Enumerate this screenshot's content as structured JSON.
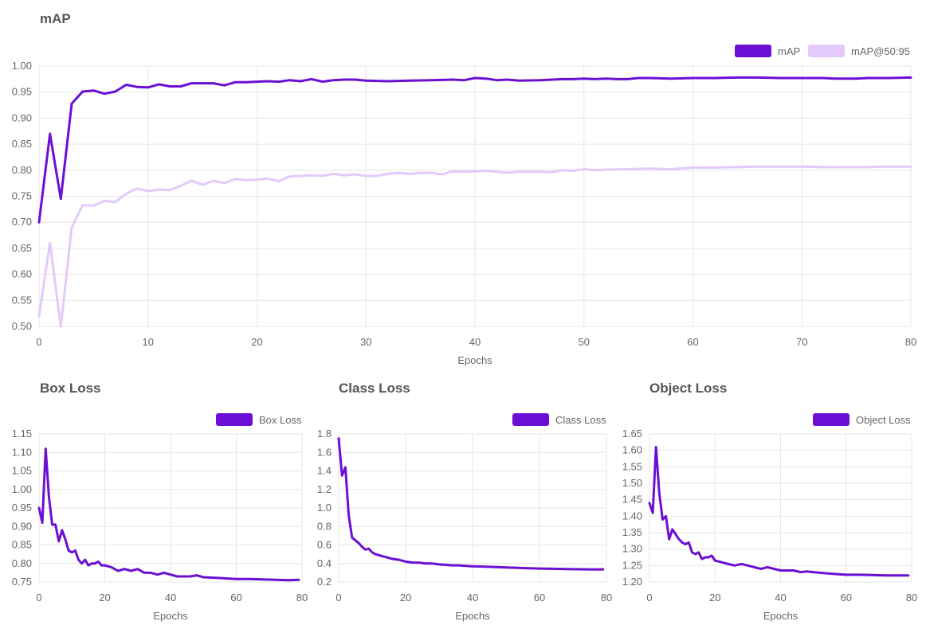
{
  "colors": {
    "primary": "#6b0fd4",
    "secondary": "#e3c9fc",
    "grid": "#e6e6e6",
    "text": "#666666",
    "title": "#555555"
  },
  "sections": {
    "map": "mAP",
    "box": "Box Loss",
    "class": "Class Loss",
    "object": "Object Loss"
  },
  "chart_data": [
    {
      "type": "line",
      "title": "mAP",
      "xlabel": "Epochs",
      "ylabel": "",
      "xlim": [
        0,
        80
      ],
      "ylim": [
        0.5,
        1.0
      ],
      "xticks": [
        0,
        10,
        20,
        30,
        40,
        50,
        60,
        70,
        80
      ],
      "yticks": [
        "0.50",
        "0.55",
        "0.60",
        "0.65",
        "0.70",
        "0.75",
        "0.80",
        "0.85",
        "0.90",
        "0.95",
        "1.00"
      ],
      "grid": true,
      "legend": "top-right",
      "series": [
        {
          "name": "mAP",
          "color": "#6b0fd4",
          "x": [
            0,
            1,
            2,
            3,
            4,
            5,
            6,
            7,
            8,
            9,
            10,
            11,
            12,
            13,
            14,
            15,
            16,
            17,
            18,
            19,
            20,
            21,
            22,
            23,
            24,
            25,
            26,
            27,
            28,
            29,
            30,
            32,
            34,
            36,
            38,
            39,
            40,
            41,
            42,
            43,
            44,
            46,
            48,
            49,
            50,
            51,
            52,
            53,
            54,
            55,
            56,
            58,
            60,
            62,
            64,
            65,
            66,
            68,
            70,
            72,
            73,
            74,
            75,
            76,
            78,
            80
          ],
          "y": [
            0.7,
            0.87,
            0.745,
            0.928,
            0.951,
            0.953,
            0.947,
            0.951,
            0.964,
            0.96,
            0.959,
            0.965,
            0.961,
            0.961,
            0.967,
            0.967,
            0.967,
            0.963,
            0.969,
            0.969,
            0.97,
            0.971,
            0.97,
            0.973,
            0.971,
            0.975,
            0.97,
            0.973,
            0.974,
            0.974,
            0.972,
            0.971,
            0.972,
            0.973,
            0.974,
            0.973,
            0.977,
            0.976,
            0.973,
            0.974,
            0.972,
            0.973,
            0.975,
            0.975,
            0.976,
            0.975,
            0.976,
            0.975,
            0.975,
            0.977,
            0.977,
            0.976,
            0.977,
            0.977,
            0.978,
            0.978,
            0.978,
            0.977,
            0.977,
            0.977,
            0.976,
            0.976,
            0.976,
            0.977,
            0.977,
            0.978
          ]
        },
        {
          "name": "mAP@50:95",
          "color": "#e3c9fc",
          "x": [
            0,
            1,
            2,
            3,
            4,
            5,
            6,
            7,
            8,
            9,
            10,
            11,
            12,
            13,
            14,
            15,
            16,
            17,
            18,
            19,
            20,
            21,
            22,
            23,
            24,
            25,
            26,
            27,
            28,
            29,
            30,
            31,
            32,
            33,
            34,
            35,
            36,
            37,
            38,
            39,
            40,
            41,
            42,
            43,
            44,
            45,
            46,
            47,
            48,
            49,
            50,
            51,
            52,
            54,
            56,
            58,
            60,
            62,
            64,
            66,
            68,
            70,
            72,
            74,
            76,
            78,
            80
          ],
          "y": [
            0.52,
            0.66,
            0.5,
            0.69,
            0.733,
            0.732,
            0.741,
            0.739,
            0.755,
            0.765,
            0.76,
            0.763,
            0.762,
            0.77,
            0.78,
            0.772,
            0.78,
            0.775,
            0.783,
            0.781,
            0.782,
            0.784,
            0.779,
            0.788,
            0.789,
            0.79,
            0.789,
            0.793,
            0.79,
            0.792,
            0.789,
            0.789,
            0.793,
            0.795,
            0.793,
            0.795,
            0.795,
            0.792,
            0.798,
            0.797,
            0.798,
            0.799,
            0.797,
            0.795,
            0.797,
            0.797,
            0.797,
            0.796,
            0.8,
            0.799,
            0.802,
            0.8,
            0.801,
            0.802,
            0.803,
            0.802,
            0.805,
            0.805,
            0.806,
            0.807,
            0.807,
            0.807,
            0.806,
            0.806,
            0.806,
            0.807,
            0.807
          ]
        }
      ]
    },
    {
      "type": "line",
      "title": "Box Loss",
      "xlabel": "Epochs",
      "ylabel": "",
      "xlim": [
        0,
        80
      ],
      "ylim": [
        0.75,
        1.15
      ],
      "xticks": [
        0,
        20,
        40,
        60,
        80
      ],
      "yticks": [
        "0.75",
        "0.80",
        "0.85",
        "0.90",
        "0.95",
        "1.00",
        "1.05",
        "1.10",
        "1.15"
      ],
      "grid": true,
      "legend": "top-right",
      "series": [
        {
          "name": "Box Loss",
          "color": "#6b0fd4",
          "x": [
            0,
            1,
            2,
            3,
            4,
            5,
            6,
            7,
            8,
            9,
            10,
            11,
            12,
            13,
            14,
            15,
            16,
            17,
            18,
            19,
            20,
            22,
            24,
            26,
            28,
            30,
            32,
            34,
            36,
            38,
            40,
            42,
            44,
            46,
            48,
            50,
            52,
            56,
            60,
            64,
            68,
            72,
            76,
            79
          ],
          "y": [
            0.95,
            0.91,
            1.11,
            0.98,
            0.905,
            0.905,
            0.86,
            0.89,
            0.865,
            0.835,
            0.83,
            0.835,
            0.81,
            0.8,
            0.81,
            0.795,
            0.8,
            0.8,
            0.805,
            0.795,
            0.795,
            0.79,
            0.78,
            0.785,
            0.78,
            0.785,
            0.775,
            0.775,
            0.77,
            0.775,
            0.77,
            0.765,
            0.765,
            0.765,
            0.768,
            0.763,
            0.762,
            0.76,
            0.758,
            0.758,
            0.757,
            0.756,
            0.755,
            0.756
          ]
        }
      ]
    },
    {
      "type": "line",
      "title": "Class Loss",
      "xlabel": "Epochs",
      "ylabel": "",
      "xlim": [
        0,
        80
      ],
      "ylim": [
        0.2,
        1.8
      ],
      "xticks": [
        0,
        20,
        40,
        60,
        80
      ],
      "yticks": [
        "0.2",
        "0.4",
        "0.6",
        "0.8",
        "1.0",
        "1.2",
        "1.4",
        "1.6",
        "1.8"
      ],
      "grid": true,
      "legend": "top-right",
      "series": [
        {
          "name": "Class Loss",
          "color": "#6b0fd4",
          "x": [
            0,
            1,
            2,
            3,
            4,
            5,
            6,
            7,
            8,
            9,
            10,
            11,
            12,
            13,
            14,
            16,
            18,
            20,
            22,
            24,
            26,
            28,
            30,
            32,
            34,
            36,
            38,
            40,
            44,
            48,
            52,
            56,
            60,
            64,
            68,
            72,
            76,
            79
          ],
          "y": [
            1.75,
            1.35,
            1.44,
            0.92,
            0.68,
            0.65,
            0.62,
            0.58,
            0.55,
            0.56,
            0.52,
            0.5,
            0.49,
            0.48,
            0.47,
            0.45,
            0.44,
            0.42,
            0.41,
            0.41,
            0.4,
            0.4,
            0.39,
            0.385,
            0.38,
            0.38,
            0.375,
            0.37,
            0.365,
            0.36,
            0.355,
            0.35,
            0.345,
            0.343,
            0.34,
            0.338,
            0.336,
            0.337
          ]
        }
      ]
    },
    {
      "type": "line",
      "title": "Object Loss",
      "xlabel": "Epochs",
      "ylabel": "",
      "xlim": [
        0,
        80
      ],
      "ylim": [
        1.2,
        1.65
      ],
      "xticks": [
        0,
        20,
        40,
        60,
        80
      ],
      "yticks": [
        "1.20",
        "1.25",
        "1.30",
        "1.35",
        "1.40",
        "1.45",
        "1.50",
        "1.55",
        "1.60",
        "1.65"
      ],
      "grid": true,
      "legend": "top-right",
      "series": [
        {
          "name": "Object Loss",
          "color": "#6b0fd4",
          "x": [
            0,
            1,
            2,
            3,
            4,
            5,
            6,
            7,
            8,
            9,
            10,
            11,
            12,
            13,
            14,
            15,
            16,
            17,
            18,
            19,
            20,
            22,
            24,
            26,
            28,
            30,
            32,
            34,
            36,
            38,
            40,
            42,
            44,
            46,
            48,
            50,
            52,
            56,
            60,
            64,
            68,
            72,
            76,
            79
          ],
          "y": [
            1.44,
            1.41,
            1.61,
            1.47,
            1.39,
            1.4,
            1.33,
            1.36,
            1.345,
            1.33,
            1.32,
            1.315,
            1.32,
            1.29,
            1.285,
            1.29,
            1.27,
            1.275,
            1.275,
            1.28,
            1.265,
            1.26,
            1.255,
            1.25,
            1.255,
            1.25,
            1.245,
            1.24,
            1.245,
            1.24,
            1.235,
            1.235,
            1.235,
            1.23,
            1.232,
            1.23,
            1.228,
            1.225,
            1.222,
            1.222,
            1.221,
            1.22,
            1.22,
            1.22
          ]
        }
      ]
    }
  ]
}
